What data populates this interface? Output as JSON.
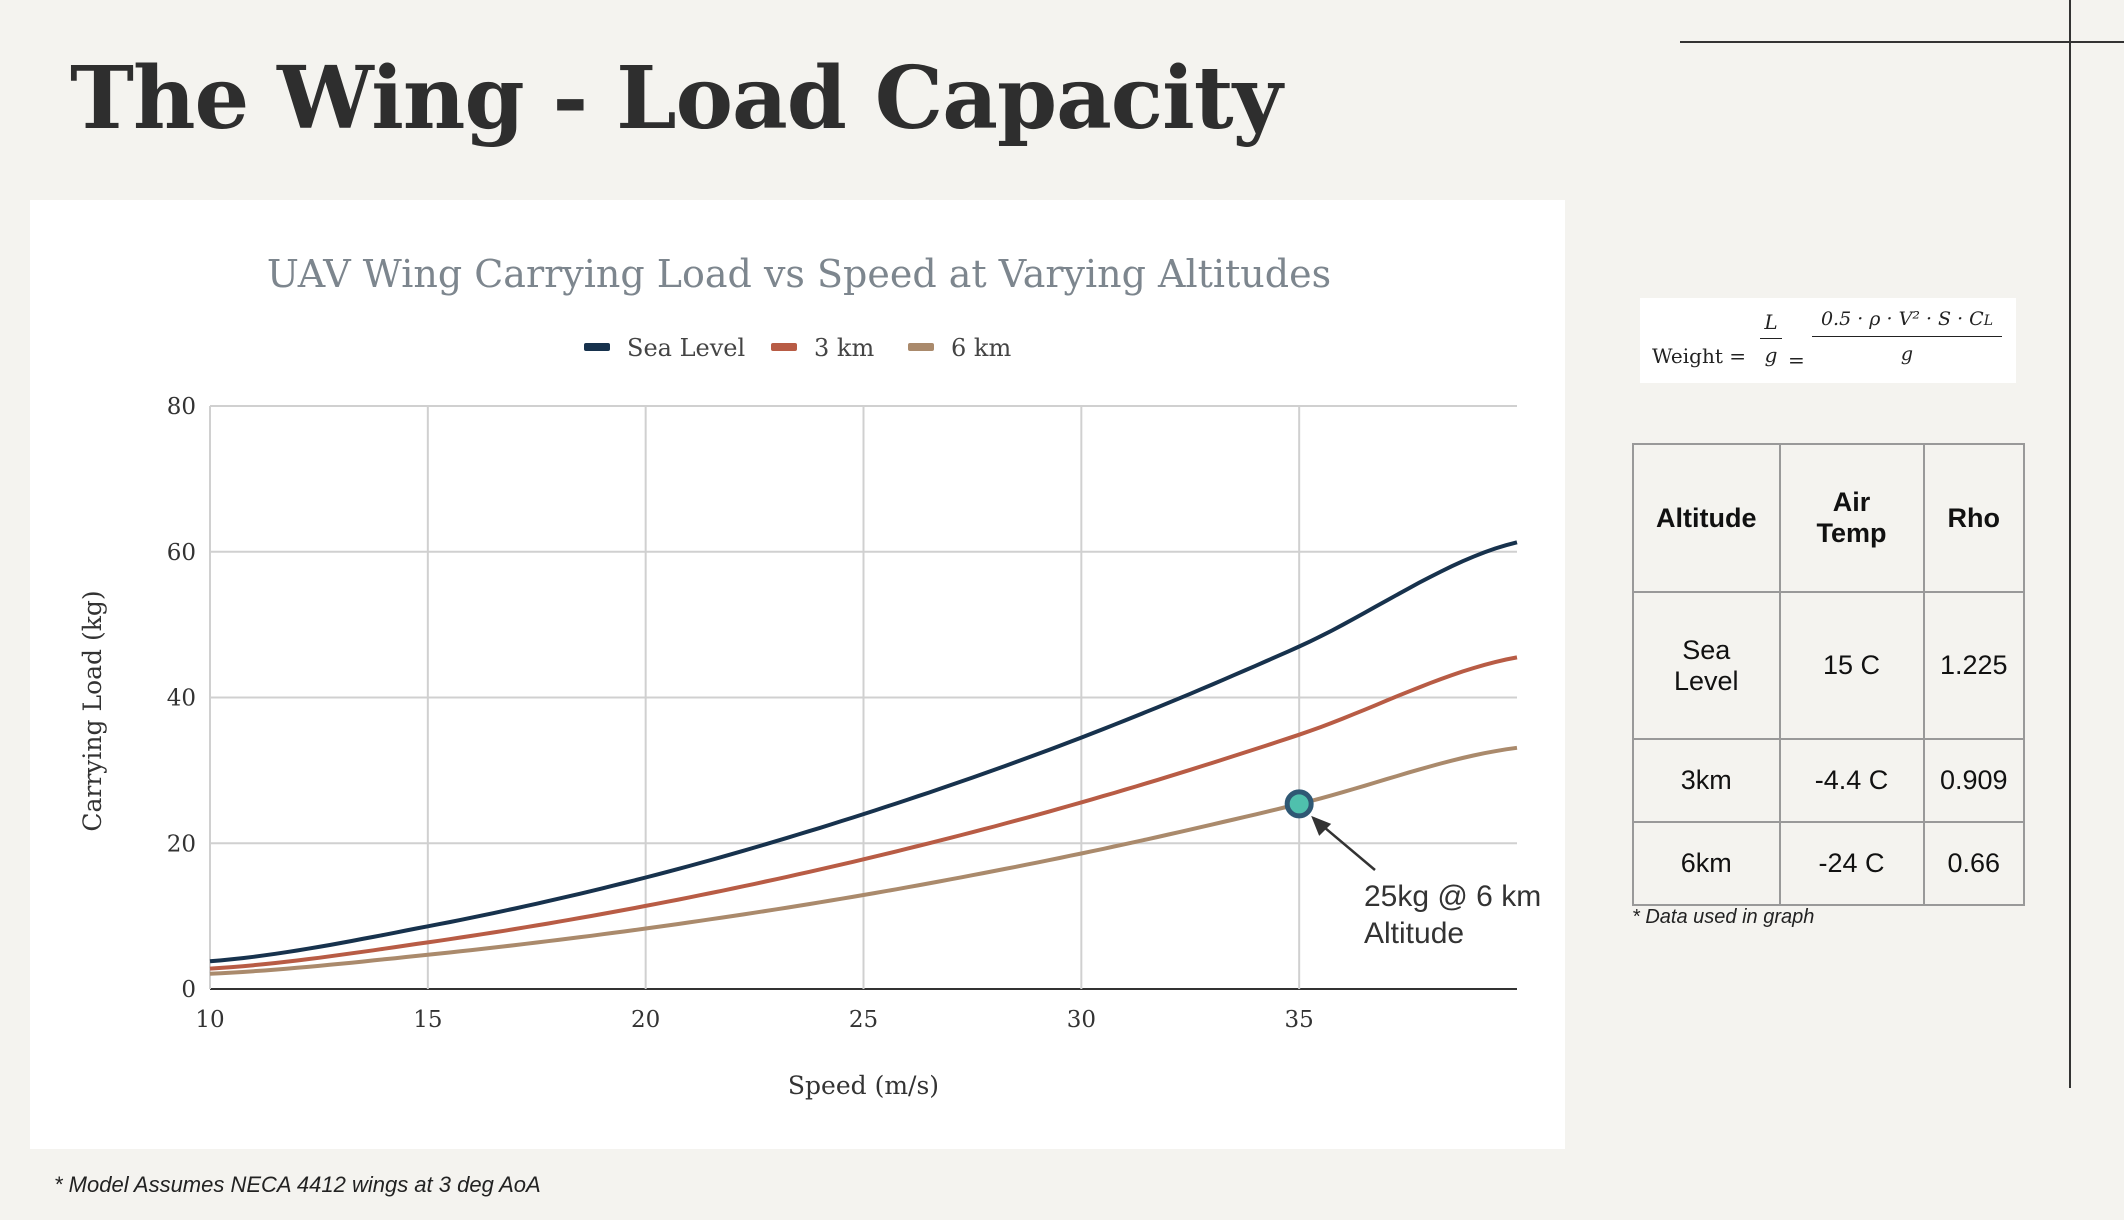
{
  "page_title": "The Wing - Load Capacity",
  "formula": {
    "lhs": "Weight =",
    "frac1_num": "L",
    "frac1_den": "g",
    "eq": "=",
    "frac2_num": "0.5 · ρ · V² · S · C",
    "frac2_num_sub": "L",
    "frac2_den": "g"
  },
  "table": {
    "headers": [
      "Altitude",
      "Air Temp",
      "Rho"
    ],
    "rows": [
      [
        "Sea Level",
        "15 C",
        "1.225"
      ],
      [
        "3km",
        "-4.4 C",
        "0.909"
      ],
      [
        "6km",
        "-24 C",
        "0.66"
      ]
    ],
    "note": "* Data used in graph"
  },
  "footnote": "* Model Assumes NECA 4412 wings at 3 deg AoA",
  "chart_data": {
    "type": "line",
    "title": "UAV Wing Carrying Load vs Speed at Varying Altitudes",
    "xlabel": "Speed (m/s)",
    "ylabel": "Carrying Load (kg)",
    "xlim": [
      10,
      40
    ],
    "ylim": [
      0,
      80
    ],
    "xticks": [
      10,
      15,
      20,
      25,
      30,
      35
    ],
    "yticks": [
      0,
      20,
      40,
      60,
      80
    ],
    "grid": true,
    "legend": "top-center",
    "x": [
      10,
      15,
      20,
      25,
      30,
      35,
      40
    ],
    "series": [
      {
        "name": "Sea Level",
        "color": "#17324d",
        "values": [
          3.8,
          8.6,
          15.3,
          24.0,
          34.5,
          47.0,
          61.3
        ]
      },
      {
        "name": "3 km",
        "color": "#b85c45",
        "values": [
          2.8,
          6.4,
          11.4,
          17.8,
          25.6,
          34.9,
          45.5
        ]
      },
      {
        "name": "6 km",
        "color": "#aa8a6c",
        "values": [
          2.1,
          4.7,
          8.3,
          12.9,
          18.6,
          25.4,
          33.1
        ]
      }
    ],
    "annotation": {
      "x": 35,
      "y": 25.4,
      "text_line1": "25kg @ 6 km",
      "text_line2": "Altitude",
      "marker_color": "#4fc0ad"
    }
  }
}
